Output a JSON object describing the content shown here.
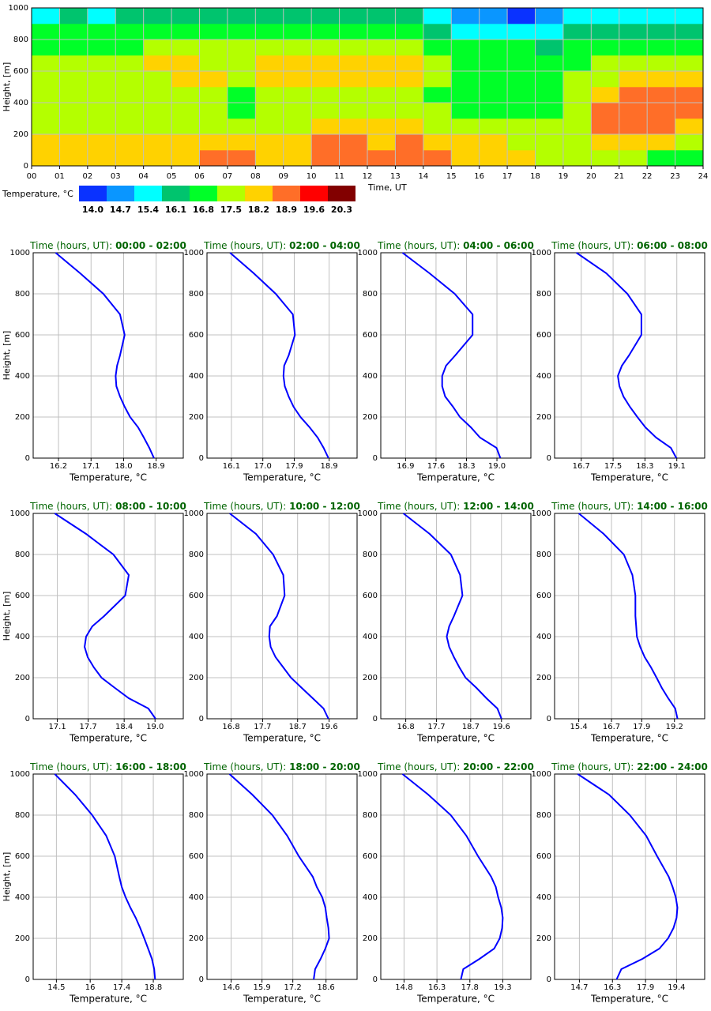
{
  "chart_data": [
    {
      "type": "heatmap",
      "xlabel": "Time, UT",
      "ylabel": "Height, [m]",
      "xlim": [
        0,
        24
      ],
      "ylim": [
        0,
        1000
      ],
      "xticks": [
        {
          "value": 0,
          "label": "00"
        },
        {
          "value": 1,
          "label": "01"
        },
        {
          "value": 2,
          "label": "02"
        },
        {
          "value": 3,
          "label": "03"
        },
        {
          "value": 4,
          "label": "04"
        },
        {
          "value": 5,
          "label": "05"
        },
        {
          "value": 6,
          "label": "06"
        },
        {
          "value": 7,
          "label": "07"
        },
        {
          "value": 8,
          "label": "08"
        },
        {
          "value": 9,
          "label": "09"
        },
        10,
        11,
        12,
        13,
        14,
        15,
        16,
        17,
        18,
        19,
        20,
        21,
        22,
        23,
        24
      ],
      "yticks": [
        0,
        200,
        400,
        600,
        800,
        1000
      ],
      "grid": true,
      "x": [
        0,
        1,
        2,
        3,
        4,
        5,
        6,
        7,
        8,
        9,
        10,
        11,
        12,
        13,
        14,
        15,
        16,
        17,
        18,
        19,
        20,
        21,
        22,
        23
      ],
      "y": [
        0,
        100,
        200,
        300,
        400,
        500,
        600,
        700,
        800,
        900
      ],
      "z": [
        [
          18.5,
          18.3,
          17.8,
          17.8,
          17.8,
          17.9,
          17.9,
          17.3,
          16.9,
          16.0
        ],
        [
          18.4,
          18.3,
          17.8,
          17.7,
          17.8,
          17.9,
          17.9,
          17.3,
          16.9,
          16.2
        ],
        [
          18.5,
          18.3,
          17.8,
          17.7,
          17.7,
          17.9,
          17.8,
          17.3,
          16.8,
          16.0
        ],
        [
          18.4,
          18.3,
          17.9,
          17.6,
          17.7,
          17.9,
          17.9,
          17.3,
          16.9,
          16.2
        ],
        [
          18.4,
          18.3,
          17.9,
          17.7,
          17.8,
          18.0,
          18.3,
          17.6,
          17.0,
          16.3
        ],
        [
          18.5,
          18.3,
          17.9,
          17.7,
          17.8,
          18.2,
          18.3,
          17.7,
          17.1,
          16.4
        ],
        [
          19.0,
          18.4,
          17.9,
          17.6,
          17.7,
          18.2,
          18.1,
          17.6,
          17.0,
          16.6
        ],
        [
          19.0,
          18.4,
          18.0,
          17.4,
          17.4,
          17.9,
          18.0,
          17.7,
          17.0,
          16.4
        ],
        [
          18.6,
          18.3,
          17.9,
          17.7,
          17.8,
          18.3,
          18.3,
          17.9,
          17.2,
          16.6
        ],
        [
          18.7,
          18.4,
          18.0,
          17.8,
          17.9,
          18.4,
          18.4,
          17.8,
          17.2,
          16.6
        ],
        [
          19.3,
          19.0,
          18.3,
          17.9,
          18.0,
          18.3,
          18.3,
          17.8,
          17.1,
          16.5
        ],
        [
          19.2,
          18.9,
          18.3,
          17.9,
          17.9,
          18.3,
          18.3,
          17.8,
          17.1,
          16.5
        ],
        [
          19.0,
          18.7,
          18.2,
          17.9,
          18.0,
          18.4,
          18.4,
          17.8,
          17.0,
          16.4
        ],
        [
          19.4,
          18.9,
          18.3,
          17.9,
          18.0,
          18.3,
          18.3,
          17.7,
          17.0,
          16.3
        ],
        [
          19.0,
          18.5,
          17.9,
          17.5,
          17.4,
          17.6,
          17.8,
          17.4,
          16.6,
          15.8
        ],
        [
          18.7,
          18.3,
          17.7,
          17.2,
          17.0,
          17.1,
          17.2,
          16.9,
          15.9,
          15.0
        ],
        [
          18.6,
          18.2,
          17.6,
          17.1,
          16.9,
          17.1,
          17.2,
          16.9,
          15.8,
          14.8
        ],
        [
          18.3,
          18.0,
          17.6,
          17.2,
          17.0,
          17.1,
          17.1,
          16.8,
          15.8,
          14.5
        ],
        [
          18.0,
          17.8,
          17.6,
          17.4,
          17.2,
          17.1,
          17.0,
          16.6,
          16.0,
          15.2
        ],
        [
          17.7,
          17.9,
          18.1,
          18.1,
          17.8,
          17.5,
          17.3,
          16.8,
          16.1,
          15.5
        ],
        [
          17.6,
          18.2,
          18.9,
          18.9,
          18.6,
          18.1,
          17.6,
          16.9,
          16.2,
          15.6
        ],
        [
          17.5,
          18.3,
          19.0,
          19.2,
          19.0,
          18.5,
          17.8,
          17.0,
          16.3,
          15.6
        ],
        [
          17.3,
          18.2,
          19.0,
          19.3,
          19.2,
          18.7,
          17.9,
          17.0,
          16.2,
          15.6
        ],
        [
          17.1,
          17.8,
          18.8,
          19.3,
          19.2,
          18.7,
          18.0,
          17.1,
          16.3,
          15.5
        ]
      ],
      "colorbar": {
        "label": "Temperature, °C",
        "levels": [
          {
            "value": 14,
            "label": "14.0"
          },
          14.7,
          15.4,
          16.1,
          16.8,
          17.5,
          18.2,
          18.9,
          19.6,
          20.3
        ],
        "colors": [
          "#0a32ff",
          "#0a96ff",
          "#00ffff",
          "#00c46e",
          "#00ff28",
          "#b4ff00",
          "#ffd200",
          "#ff6e28",
          "#ff0000",
          "#820000"
        ]
      }
    },
    {
      "type": "line",
      "title": "Time (hours, UT):",
      "subtitle": "00:00 - 02:00",
      "xlabel": "Temperature, °C",
      "ylabel": "Height, [m]",
      "color": "#0000ff",
      "xlim": [
        15.5,
        19.65
      ],
      "xticks": [
        16.2,
        17.1,
        {
          "value": 18,
          "label": "18.0"
        },
        18.9
      ],
      "ylim": [
        0,
        1000
      ],
      "yticks": [
        0,
        200,
        400,
        600,
        800,
        1000
      ],
      "grid": true,
      "y": [
        0,
        50,
        100,
        150,
        200,
        250,
        300,
        350,
        400,
        450,
        500,
        600,
        700,
        800,
        900,
        1000
      ],
      "x": [
        18.84,
        18.71,
        18.56,
        18.4,
        18.18,
        18.03,
        17.9,
        17.8,
        17.78,
        17.82,
        17.9,
        18.03,
        17.9,
        17.44,
        16.8,
        16.12
      ]
    },
    {
      "type": "line",
      "title": "Time (hours, UT):",
      "subtitle": "02:00 - 04:00",
      "xlabel": "Temperature, °C",
      "color": "#0000ff",
      "xlim": [
        15.4,
        19.7
      ],
      "xticks": [
        16.1,
        {
          "value": 17,
          "label": "17.0"
        },
        17.9,
        18.9
      ],
      "ylim": [
        0,
        1000
      ],
      "yticks": [
        0,
        200,
        400,
        600,
        800,
        1000
      ],
      "grid": true,
      "y": [
        0,
        50,
        100,
        150,
        200,
        250,
        300,
        350,
        400,
        450,
        500,
        600,
        700,
        800,
        900,
        1000
      ],
      "x": [
        18.88,
        18.74,
        18.57,
        18.34,
        18.08,
        17.88,
        17.74,
        17.63,
        17.59,
        17.61,
        17.74,
        17.92,
        17.86,
        17.37,
        16.74,
        16.06
      ]
    },
    {
      "type": "line",
      "title": "Time (hours, UT):",
      "subtitle": "04:00 - 06:00",
      "xlabel": "Temperature, °C",
      "color": "#0000ff",
      "xlim": [
        16.33,
        19.78
      ],
      "xticks": [
        16.9,
        17.6,
        18.3,
        {
          "value": 19,
          "label": "19.0"
        }
      ],
      "ylim": [
        0,
        1000
      ],
      "yticks": [
        0,
        200,
        400,
        600,
        800,
        1000
      ],
      "grid": true,
      "y": [
        0,
        50,
        100,
        150,
        200,
        250,
        300,
        350,
        400,
        450,
        500,
        600,
        700,
        800,
        900,
        1000
      ],
      "x": [
        19.08,
        18.99,
        18.61,
        18.4,
        18.15,
        17.99,
        17.81,
        17.74,
        17.74,
        17.83,
        18.04,
        18.44,
        18.44,
        18.03,
        17.45,
        16.83
      ]
    },
    {
      "type": "line",
      "title": "Time (hours, UT):",
      "subtitle": "06:00 - 08:00",
      "xlabel": "Temperature, °C",
      "color": "#0000ff",
      "xlim": [
        16.03,
        19.8
      ],
      "xticks": [
        16.7,
        17.5,
        18.3,
        19.1
      ],
      "ylim": [
        0,
        1000
      ],
      "yticks": [
        0,
        200,
        400,
        600,
        800,
        1000
      ],
      "grid": true,
      "y": [
        0,
        50,
        100,
        150,
        200,
        250,
        300,
        350,
        400,
        450,
        500,
        600,
        700,
        800,
        900,
        1000
      ],
      "x": [
        19.09,
        18.95,
        18.58,
        18.31,
        18.11,
        17.92,
        17.76,
        17.66,
        17.62,
        17.72,
        17.9,
        18.21,
        18.21,
        17.86,
        17.33,
        16.58
      ]
    },
    {
      "type": "line",
      "title": "Time (hours, UT):",
      "subtitle": "08:00 - 10:00",
      "xlabel": "Temperature, °C",
      "ylabel": "Height, [m]",
      "color": "#0000ff",
      "xlim": [
        16.63,
        19.55
      ],
      "xticks": [
        17.1,
        17.7,
        18.4,
        {
          "value": 19,
          "label": "19.0"
        }
      ],
      "ylim": [
        0,
        1000
      ],
      "yticks": [
        0,
        200,
        400,
        600,
        800,
        1000
      ],
      "grid": true,
      "y": [
        0,
        50,
        100,
        150,
        200,
        250,
        300,
        350,
        400,
        450,
        500,
        600,
        700,
        800,
        900,
        1000
      ],
      "x": [
        19.01,
        18.87,
        18.49,
        18.22,
        17.96,
        17.81,
        17.69,
        17.63,
        17.66,
        17.78,
        18.01,
        18.42,
        18.49,
        18.19,
        17.66,
        17.05
      ]
    },
    {
      "type": "line",
      "title": "Time (hours, UT):",
      "subtitle": "10:00 - 12:00",
      "xlabel": "Temperature, °C",
      "color": "#0000ff",
      "xlim": [
        16.11,
        20.4
      ],
      "xticks": [
        16.8,
        17.7,
        18.7,
        19.6
      ],
      "ylim": [
        0,
        1000
      ],
      "yticks": [
        0,
        200,
        400,
        600,
        800,
        1000
      ],
      "grid": true,
      "y": [
        0,
        50,
        100,
        150,
        200,
        250,
        300,
        350,
        400,
        450,
        500,
        600,
        700,
        800,
        900,
        1000
      ],
      "x": [
        19.58,
        19.44,
        19.13,
        18.82,
        18.51,
        18.29,
        18.07,
        17.93,
        17.89,
        17.91,
        18.11,
        18.33,
        18.29,
        18.0,
        17.51,
        16.76
      ]
    },
    {
      "type": "line",
      "title": "Time (hours, UT):",
      "subtitle": "12:00 - 14:00",
      "xlabel": "Temperature, °C",
      "color": "#0000ff",
      "xlim": [
        16.07,
        20.46
      ],
      "xticks": [
        16.8,
        17.7,
        18.7,
        19.6
      ],
      "ylim": [
        0,
        1000
      ],
      "yticks": [
        0,
        200,
        400,
        600,
        800,
        1000
      ],
      "grid": true,
      "y": [
        0,
        50,
        100,
        150,
        200,
        250,
        300,
        350,
        400,
        450,
        500,
        600,
        700,
        800,
        900,
        1000
      ],
      "x": [
        19.6,
        19.48,
        19.16,
        18.87,
        18.55,
        18.37,
        18.21,
        18.07,
        18.0,
        18.07,
        18.21,
        18.46,
        18.39,
        18.12,
        17.5,
        16.73
      ]
    },
    {
      "type": "line",
      "title": "Time (hours, UT):",
      "subtitle": "14:00 - 16:00",
      "xlabel": "Temperature, °C",
      "color": "#0000ff",
      "xlim": [
        14.44,
        20.4
      ],
      "xticks": [
        15.4,
        16.7,
        17.9,
        19.2
      ],
      "ylim": [
        0,
        1000
      ],
      "yticks": [
        0,
        200,
        400,
        600,
        800,
        1000
      ],
      "grid": true,
      "y": [
        0,
        50,
        100,
        150,
        200,
        250,
        300,
        350,
        400,
        450,
        500,
        600,
        700,
        800,
        900,
        1000
      ],
      "x": [
        19.32,
        19.23,
        18.95,
        18.7,
        18.49,
        18.27,
        18.02,
        17.84,
        17.71,
        17.68,
        17.65,
        17.65,
        17.53,
        17.19,
        16.39,
        15.4
      ]
    },
    {
      "type": "line",
      "title": "Time (hours, UT):",
      "subtitle": "16:00 - 18:00",
      "xlabel": "Temperature, °C",
      "ylabel": "Height, [m]",
      "color": "#0000ff",
      "xlim": [
        13.47,
        20.13
      ],
      "xticks": [
        14.5,
        16.0,
        17.4,
        18.8
      ],
      "ylim": [
        0,
        1000
      ],
      "yticks": [
        0,
        200,
        400,
        600,
        800,
        1000
      ],
      "grid": true,
      "y": [
        0,
        50,
        100,
        150,
        200,
        250,
        300,
        350,
        400,
        450,
        500,
        600,
        700,
        800,
        900,
        1000
      ],
      "x": [
        18.88,
        18.84,
        18.74,
        18.57,
        18.4,
        18.22,
        18.02,
        17.78,
        17.57,
        17.4,
        17.29,
        17.09,
        16.71,
        16.09,
        15.33,
        14.43
      ]
    },
    {
      "type": "line",
      "title": "Time (hours, UT):",
      "subtitle": "18:00 - 20:00",
      "xlabel": "Temperature, °C",
      "color": "#0000ff",
      "xlim": [
        13.58,
        19.91
      ],
      "xticks": [
        14.6,
        15.9,
        17.2,
        18.6
      ],
      "ylim": [
        0,
        1000
      ],
      "yticks": [
        0,
        200,
        400,
        600,
        800,
        1000
      ],
      "grid": true,
      "y": [
        0,
        50,
        100,
        150,
        200,
        250,
        300,
        350,
        400,
        450,
        500,
        600,
        700,
        800,
        900,
        1000
      ],
      "x": [
        18.08,
        18.14,
        18.37,
        18.57,
        18.73,
        18.7,
        18.63,
        18.57,
        18.44,
        18.21,
        18.04,
        17.45,
        16.96,
        16.34,
        15.49,
        14.53
      ]
    },
    {
      "type": "line",
      "title": "Time (hours, UT):",
      "subtitle": "20:00 - 22:00",
      "xlabel": "Temperature, °C",
      "color": "#0000ff",
      "xlim": [
        13.74,
        20.58
      ],
      "xticks": [
        14.8,
        16.3,
        17.8,
        19.3
      ],
      "ylim": [
        0,
        1000
      ],
      "yticks": [
        0,
        200,
        400,
        600,
        800,
        1000
      ],
      "grid": true,
      "y": [
        0,
        50,
        100,
        150,
        200,
        250,
        300,
        350,
        400,
        450,
        500,
        600,
        700,
        800,
        900,
        1000
      ],
      "x": [
        17.39,
        17.5,
        18.24,
        18.91,
        19.16,
        19.27,
        19.3,
        19.23,
        19.09,
        18.98,
        18.77,
        18.17,
        17.64,
        16.93,
        15.9,
        14.73
      ]
    },
    {
      "type": "line",
      "title": "Time (hours, UT):",
      "subtitle": "22:00 - 24:00",
      "xlabel": "Temperature, °C",
      "color": "#0000ff",
      "xlim": [
        13.5,
        20.76
      ],
      "xticks": [
        14.7,
        16.3,
        17.9,
        19.4
      ],
      "ylim": [
        0,
        1000
      ],
      "yticks": [
        0,
        200,
        400,
        600,
        800,
        1000
      ],
      "grid": true,
      "y": [
        0,
        50,
        100,
        150,
        200,
        250,
        300,
        350,
        400,
        450,
        500,
        600,
        700,
        800,
        900,
        1000
      ],
      "x": [
        16.5,
        16.73,
        17.75,
        18.57,
        18.99,
        19.25,
        19.4,
        19.44,
        19.36,
        19.21,
        19.02,
        18.46,
        17.93,
        17.14,
        16.13,
        14.62
      ]
    }
  ]
}
